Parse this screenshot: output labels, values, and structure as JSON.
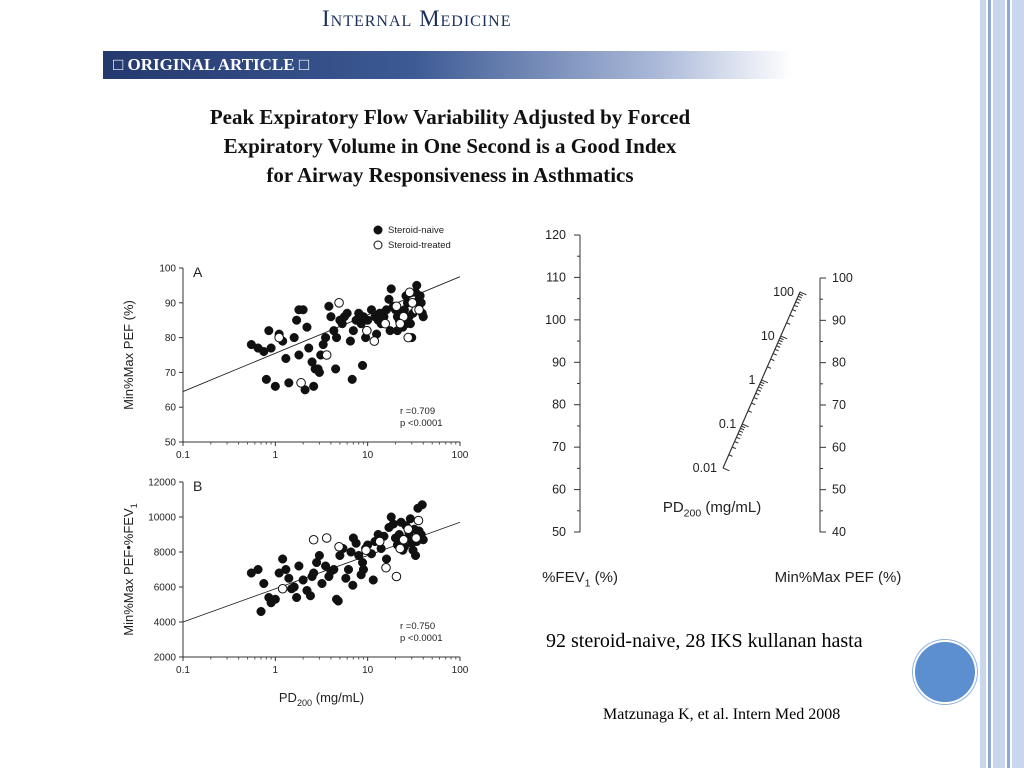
{
  "header": {
    "journal": "Internal Medicine",
    "banner": "□ ORIGINAL ARTICLE □",
    "title_lines": [
      "Peak Expiratory Flow Variability Adjusted by Forced",
      "Expiratory Volume in One Second is a Good Index",
      "for Airway Responsiveness in Asthmatics"
    ]
  },
  "caption": "92 steroid-naive, 28 IKS kullanan hasta",
  "citation": "Matzunaga K, et al. Intern Med 2008",
  "colors": {
    "banner_dark": "#24396e",
    "accent_blue": "#5b8fd0",
    "side_bar": "#b8c9e4"
  },
  "chart_data": [
    {
      "type": "scatter",
      "panel": "A",
      "ylabel": "Min%Max PEF (%)",
      "xscale": "log",
      "xlim": [
        0.1,
        100
      ],
      "ylim": [
        50,
        100
      ],
      "xticks": [
        "0.1",
        "1",
        "10",
        "100"
      ],
      "yticks": [
        "50",
        "60",
        "70",
        "80",
        "90",
        "100"
      ],
      "legend": [
        "Steroid-naive",
        "Steroid-treated"
      ],
      "legend_position": "top-right",
      "stats": [
        "r =0.709",
        "p <0.0001"
      ],
      "regression": {
        "x": [
          0.1,
          100
        ],
        "y": [
          64.5,
          97.5
        ]
      },
      "series": [
        {
          "name": "Steroid-naive",
          "marker": "filled-circle",
          "points": [
            [
              0.55,
              78
            ],
            [
              0.65,
              77
            ],
            [
              0.75,
              76
            ],
            [
              0.9,
              77
            ],
            [
              0.85,
              82
            ],
            [
              1.1,
              81
            ],
            [
              1.2,
              79
            ],
            [
              1.3,
              74
            ],
            [
              0.8,
              68
            ],
            [
              1.0,
              66
            ],
            [
              1.4,
              67
            ],
            [
              1.6,
              80
            ],
            [
              1.7,
              85
            ],
            [
              1.8,
              88
            ],
            [
              2.0,
              88
            ],
            [
              2.2,
              83
            ],
            [
              2.3,
              77
            ],
            [
              2.5,
              73
            ],
            [
              2.7,
              71
            ],
            [
              2.9,
              71
            ],
            [
              3.1,
              75
            ],
            [
              3.3,
              78
            ],
            [
              3.5,
              80
            ],
            [
              3.8,
              89
            ],
            [
              4.0,
              86
            ],
            [
              4.3,
              82
            ],
            [
              4.6,
              80
            ],
            [
              5.0,
              85
            ],
            [
              5.3,
              84
            ],
            [
              5.6,
              86
            ],
            [
              6.0,
              87
            ],
            [
              6.5,
              79
            ],
            [
              7.0,
              82
            ],
            [
              7.5,
              85
            ],
            [
              8.0,
              87
            ],
            [
              8.5,
              84
            ],
            [
              9.0,
              86
            ],
            [
              9.5,
              80
            ],
            [
              10,
              85
            ],
            [
              11,
              88
            ],
            [
              12,
              86
            ],
            [
              13,
              85
            ],
            [
              14,
              84
            ],
            [
              15,
              86
            ],
            [
              16,
              88
            ],
            [
              17,
              91
            ],
            [
              18,
              94
            ],
            [
              19,
              89
            ],
            [
              20,
              88
            ],
            [
              21,
              86
            ],
            [
              22,
              85
            ],
            [
              23,
              87
            ],
            [
              24,
              83
            ],
            [
              25,
              88
            ],
            [
              26,
              92
            ],
            [
              27,
              90
            ],
            [
              28,
              86
            ],
            [
              29,
              84
            ],
            [
              30,
              80
            ],
            [
              31,
              87
            ],
            [
              32,
              90
            ],
            [
              33,
              93
            ],
            [
              34,
              95
            ],
            [
              35,
              89
            ],
            [
              36,
              91
            ],
            [
              37,
              92
            ],
            [
              38,
              90
            ],
            [
              39,
              87
            ],
            [
              40,
              86
            ],
            [
              2.1,
              65
            ],
            [
              3.0,
              70
            ],
            [
              4.5,
              71
            ],
            [
              1.8,
              75
            ],
            [
              2.6,
              66
            ],
            [
              6.8,
              68
            ],
            [
              8.8,
              72
            ],
            [
              12.5,
              81
            ],
            [
              21,
              82
            ],
            [
              26,
              84
            ],
            [
              13.5,
              87
            ],
            [
              17.5,
              82
            ]
          ]
        },
        {
          "name": "Steroid-treated",
          "marker": "open-circle",
          "points": [
            [
              1.1,
              80
            ],
            [
              1.9,
              67
            ],
            [
              3.6,
              75
            ],
            [
              4.9,
              90
            ],
            [
              9.8,
              82
            ],
            [
              11.8,
              79
            ],
            [
              15.5,
              84
            ],
            [
              20.5,
              89
            ],
            [
              24.5,
              86
            ],
            [
              28.5,
              93
            ],
            [
              33.5,
              88
            ],
            [
              22.5,
              84
            ],
            [
              27.5,
              80
            ],
            [
              30.5,
              90
            ],
            [
              36,
              88
            ]
          ]
        }
      ]
    },
    {
      "type": "scatter",
      "panel": "B",
      "xlabel": "PD200 (mg/mL)",
      "ylabel": "Min%Max PEF•%FEV1",
      "xscale": "log",
      "xlim": [
        0.1,
        100
      ],
      "ylim": [
        2000,
        12000
      ],
      "xticks": [
        "0.1",
        "1",
        "10",
        "100"
      ],
      "yticks": [
        "2000",
        "4000",
        "6000",
        "8000",
        "10000",
        "12000"
      ],
      "stats": [
        "r =0.750",
        "p <0.0001"
      ],
      "regression": {
        "x": [
          0.1,
          100
        ],
        "y": [
          4000,
          9700
        ]
      },
      "series": [
        {
          "name": "Steroid-naive",
          "marker": "filled-circle",
          "points": [
            [
              0.55,
              6800
            ],
            [
              0.65,
              7000
            ],
            [
              0.75,
              6200
            ],
            [
              0.85,
              5400
            ],
            [
              0.9,
              5100
            ],
            [
              1.0,
              5300
            ],
            [
              1.1,
              6800
            ],
            [
              1.2,
              7600
            ],
            [
              1.3,
              7000
            ],
            [
              1.4,
              6500
            ],
            [
              1.6,
              6000
            ],
            [
              1.7,
              5400
            ],
            [
              1.8,
              7200
            ],
            [
              2.0,
              6400
            ],
            [
              2.2,
              5800
            ],
            [
              2.4,
              5500
            ],
            [
              2.6,
              6800
            ],
            [
              2.8,
              7400
            ],
            [
              3.0,
              7800
            ],
            [
              3.2,
              6200
            ],
            [
              3.5,
              7200
            ],
            [
              3.8,
              6600
            ],
            [
              4.0,
              6900
            ],
            [
              4.3,
              7000
            ],
            [
              4.6,
              5300
            ],
            [
              5.0,
              7800
            ],
            [
              5.4,
              8200
            ],
            [
              5.8,
              6500
            ],
            [
              6.2,
              7000
            ],
            [
              6.6,
              8000
            ],
            [
              7.0,
              8800
            ],
            [
              7.5,
              8500
            ],
            [
              8.0,
              7800
            ],
            [
              8.5,
              6700
            ],
            [
              9.0,
              7000
            ],
            [
              9.5,
              8200
            ],
            [
              10,
              8400
            ],
            [
              11,
              7900
            ],
            [
              12,
              8600
            ],
            [
              13,
              9000
            ],
            [
              14,
              8200
            ],
            [
              15,
              8900
            ],
            [
              16,
              7600
            ],
            [
              17,
              9400
            ],
            [
              18,
              10000
            ],
            [
              19,
              9600
            ],
            [
              20,
              8800
            ],
            [
              21,
              8400
            ],
            [
              22,
              9000
            ],
            [
              23,
              9700
            ],
            [
              24,
              8100
            ],
            [
              25,
              8300
            ],
            [
              26,
              9500
            ],
            [
              27,
              8800
            ],
            [
              28,
              9100
            ],
            [
              29,
              9900
            ],
            [
              30,
              8500
            ],
            [
              31,
              8100
            ],
            [
              32,
              9300
            ],
            [
              33,
              7800
            ],
            [
              34,
              8600
            ],
            [
              35,
              10500
            ],
            [
              36,
              9200
            ],
            [
              37,
              8900
            ],
            [
              38,
              9000
            ],
            [
              39,
              10700
            ],
            [
              40,
              8700
            ],
            [
              0.7,
              4600
            ],
            [
              1.5,
              5900
            ],
            [
              2.5,
              6600
            ],
            [
              4.8,
              5200
            ],
            [
              6.9,
              6100
            ],
            [
              11.5,
              6400
            ],
            [
              8.8,
              7400
            ]
          ]
        },
        {
          "name": "Steroid-treated",
          "marker": "open-circle",
          "points": [
            [
              1.2,
              5900
            ],
            [
              2.6,
              8700
            ],
            [
              3.6,
              8800
            ],
            [
              4.9,
              8300
            ],
            [
              9.6,
              8100
            ],
            [
              13.5,
              8600
            ],
            [
              15.8,
              7100
            ],
            [
              20.5,
              6600
            ],
            [
              22.5,
              8200
            ],
            [
              27.5,
              9300
            ],
            [
              33.5,
              8800
            ],
            [
              35.5,
              9800
            ],
            [
              24.5,
              8700
            ]
          ]
        }
      ]
    },
    {
      "type": "nomogram",
      "axes": [
        {
          "label": "%FEV1 (%)",
          "ticks": [
            "50",
            "60",
            "70",
            "80",
            "90",
            "100",
            "110",
            "120"
          ]
        },
        {
          "label": "PD200 (mg/mL)",
          "ticks": [
            "0.01",
            "0.1",
            "1",
            "10",
            "100"
          ]
        },
        {
          "label": "Min%Max PEF (%)",
          "ticks": [
            "40",
            "50",
            "60",
            "70",
            "80",
            "90",
            "100"
          ]
        }
      ]
    }
  ]
}
